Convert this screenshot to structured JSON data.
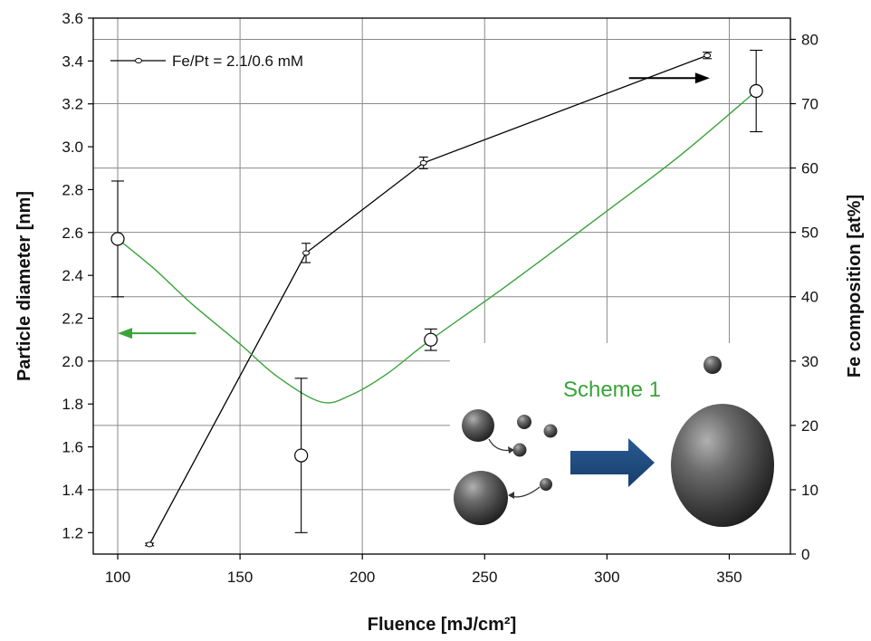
{
  "chart_data": {
    "type": "scatter",
    "xlabel": "Fluence [mJ/cm²]",
    "ylabel_left": "Particle diameter [nm]",
    "ylabel_right": "Fe composition [at%]",
    "xlim": [
      90,
      375
    ],
    "ylim_left": [
      1.1,
      3.6
    ],
    "ylim_right": [
      0,
      83.3
    ],
    "x_ticks": [
      100,
      150,
      200,
      250,
      300,
      350
    ],
    "y_left_ticks": [
      1.2,
      1.4,
      1.6,
      1.8,
      2.0,
      2.2,
      2.4,
      2.6,
      2.8,
      3.0,
      3.2,
      3.4,
      3.6
    ],
    "y_left_tick_labels": [
      "1.2",
      "1.4",
      "1.6",
      "1.8",
      "2.0",
      "2.2",
      "2.4",
      "2.6",
      "2.8",
      "3.0",
      "3.2",
      "3.4",
      "3.6"
    ],
    "y_right_ticks": [
      0,
      10,
      20,
      30,
      40,
      50,
      60,
      70,
      80
    ],
    "y_right_tick_labels": [
      "0",
      "10",
      "20",
      "30",
      "40",
      "50",
      "60",
      "70",
      "80"
    ],
    "grid": true,
    "series": [
      {
        "name": "Fe/Pt = 2.1/0.6 mM",
        "axis": "right",
        "color": "#000000",
        "points": [
          {
            "x": 113,
            "y": 1.5,
            "err": 0.2
          },
          {
            "x": 177,
            "y": 46.8,
            "err": 1.5
          },
          {
            "x": 225,
            "y": 60.8,
            "err": 0.9
          },
          {
            "x": 341,
            "y": 77.5,
            "err": 0.5
          }
        ]
      },
      {
        "name": "particle diameter",
        "axis": "left",
        "color": "#3aa33a",
        "points": [
          {
            "x": 100,
            "y": 2.57,
            "err": 0.27
          },
          {
            "x": 175,
            "y": 1.56,
            "err": 0.36
          },
          {
            "x": 228,
            "y": 2.1,
            "err": 0.05
          },
          {
            "x": 361,
            "y": 3.26,
            "err": 0.19
          }
        ],
        "curve": [
          [
            100,
            2.57
          ],
          [
            115,
            2.43
          ],
          [
            130,
            2.27
          ],
          [
            150,
            2.08
          ],
          [
            165,
            1.93
          ],
          [
            183,
            1.81
          ],
          [
            195,
            1.84
          ],
          [
            210,
            1.94
          ],
          [
            228,
            2.1
          ],
          [
            260,
            2.36
          ],
          [
            300,
            2.7
          ],
          [
            330,
            2.96
          ],
          [
            361,
            3.26
          ]
        ]
      }
    ],
    "legend": {
      "position": "top-left",
      "label": "Fe/Pt = 2.1/0.6 mM"
    },
    "annotations": {
      "green_arrow": {
        "from": [
          132,
          2.13
        ],
        "to": [
          100,
          2.13
        ],
        "color": "#3aa33a"
      },
      "black_arrow": {
        "from": [
          309,
          3.32
        ],
        "to": [
          342,
          3.32
        ],
        "color": "#000000"
      },
      "inset_label": "Scheme 1"
    }
  }
}
